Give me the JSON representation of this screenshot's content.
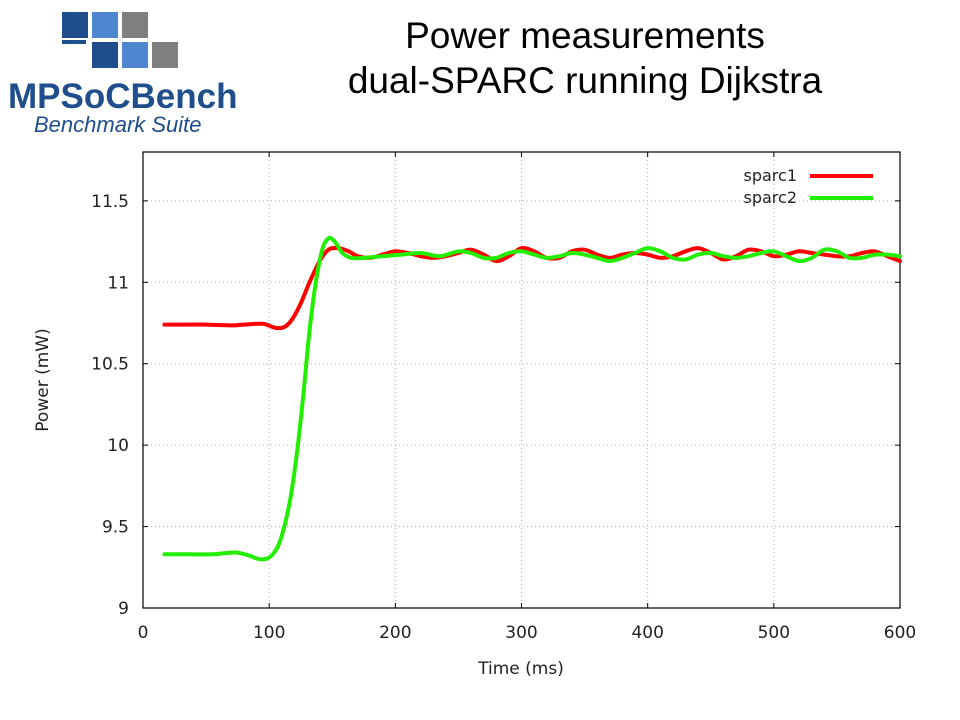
{
  "header": {
    "title_line1": "Power measurements",
    "title_line2": "dual-SPARC running Dijkstra"
  },
  "logo": {
    "name": "MPSoCBench",
    "tagline": "Benchmark Suite",
    "colors": {
      "dark_blue": "#1f4e8c",
      "light_blue": "#4f86d0",
      "gray": "#7f7f7f",
      "text_blue": "#1f4e8c"
    }
  },
  "chart_data": {
    "type": "line",
    "xlabel": "Time (ms)",
    "ylabel": "Power (mW)",
    "xlim": [
      0,
      600
    ],
    "ylim": [
      9,
      11.8
    ],
    "xticks": [
      0,
      100,
      200,
      300,
      400,
      500,
      600
    ],
    "yticks": [
      9,
      9.5,
      10,
      10.5,
      11,
      11.5
    ],
    "ytick_labels": [
      "9",
      "9.5",
      "10",
      "10.5",
      "11",
      "11.5"
    ],
    "grid": true,
    "legend_position": "top-right",
    "series": [
      {
        "name": "sparc1",
        "color": "#ff0000",
        "x": [
          17,
          30,
          50,
          70,
          80,
          95,
          105,
          112,
          118,
          125,
          132,
          140,
          147,
          155,
          163,
          170,
          180,
          190,
          200,
          210,
          220,
          230,
          240,
          250,
          260,
          270,
          280,
          290,
          300,
          310,
          320,
          330,
          340,
          350,
          360,
          370,
          380,
          390,
          400,
          410,
          420,
          430,
          440,
          450,
          460,
          470,
          480,
          490,
          500,
          510,
          520,
          530,
          540,
          550,
          560,
          570,
          580,
          590,
          600
        ],
        "y": [
          10.74,
          10.74,
          10.74,
          10.735,
          10.74,
          10.745,
          10.72,
          10.725,
          10.77,
          10.87,
          11.0,
          11.13,
          11.2,
          11.21,
          11.19,
          11.16,
          11.15,
          11.17,
          11.19,
          11.18,
          11.16,
          11.15,
          11.16,
          11.18,
          11.2,
          11.17,
          11.13,
          11.16,
          11.21,
          11.19,
          11.15,
          11.15,
          11.19,
          11.2,
          11.17,
          11.15,
          11.17,
          11.18,
          11.17,
          11.15,
          11.16,
          11.19,
          11.21,
          11.18,
          11.14,
          11.16,
          11.2,
          11.19,
          11.16,
          11.17,
          11.19,
          11.18,
          11.17,
          11.16,
          11.16,
          11.18,
          11.19,
          11.16,
          11.13
        ]
      },
      {
        "name": "sparc2",
        "color": "#22ee00",
        "x": [
          17,
          35,
          55,
          70,
          75,
          85,
          92,
          100,
          107,
          112,
          117,
          122,
          127,
          132,
          137,
          142,
          147,
          152,
          158,
          165,
          175,
          190,
          205,
          220,
          235,
          250,
          260,
          270,
          280,
          290,
          300,
          310,
          320,
          330,
          340,
          350,
          360,
          370,
          380,
          390,
          400,
          410,
          420,
          430,
          440,
          450,
          460,
          470,
          480,
          490,
          500,
          510,
          520,
          530,
          540,
          550,
          560,
          570,
          580,
          590,
          600
        ],
        "y": [
          9.33,
          9.33,
          9.33,
          9.34,
          9.34,
          9.32,
          9.3,
          9.31,
          9.38,
          9.5,
          9.68,
          9.95,
          10.3,
          10.7,
          11.0,
          11.2,
          11.27,
          11.25,
          11.18,
          11.15,
          11.15,
          11.16,
          11.17,
          11.18,
          11.16,
          11.19,
          11.18,
          11.15,
          11.15,
          11.18,
          11.19,
          11.17,
          11.15,
          11.16,
          11.18,
          11.17,
          11.15,
          11.13,
          11.15,
          11.18,
          11.21,
          11.19,
          11.15,
          11.14,
          11.17,
          11.18,
          11.16,
          11.15,
          11.16,
          11.18,
          11.19,
          11.16,
          11.13,
          11.15,
          11.2,
          11.19,
          11.15,
          11.15,
          11.17,
          11.17,
          11.16
        ]
      }
    ]
  }
}
